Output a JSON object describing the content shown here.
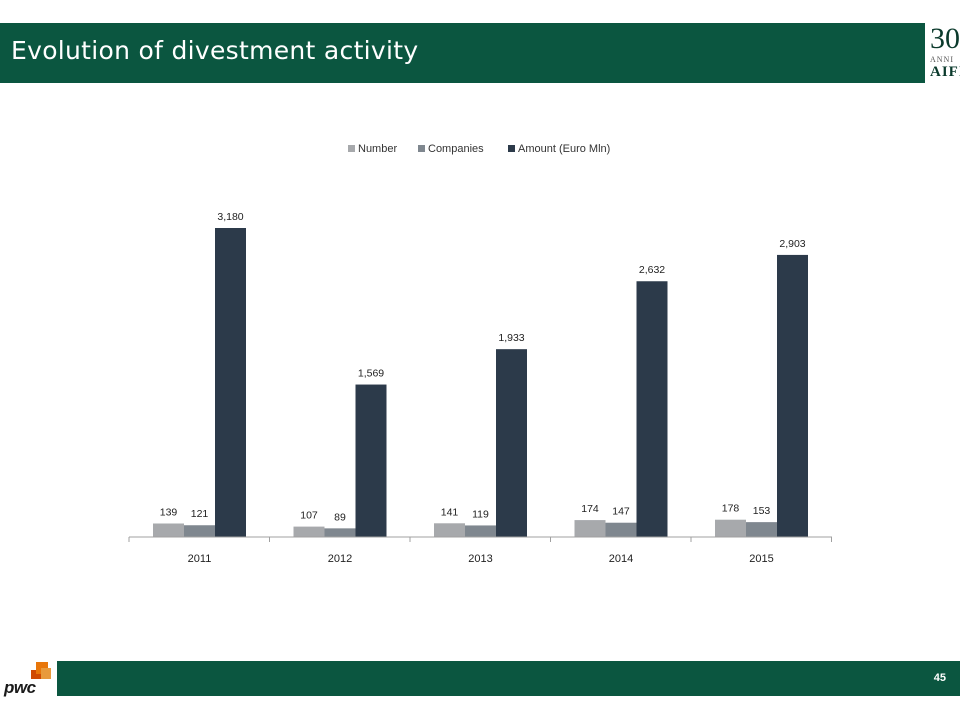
{
  "slide": {
    "title": "Evolution of divestment activity",
    "page_number": "45"
  },
  "logo": {
    "aifi_number": "30",
    "aifi_anni": "ANNI",
    "aifi_name": "AIFI",
    "pwc_name": "pwc"
  },
  "colors": {
    "header_green": "#0b5640",
    "series_number": "#a7a9ac",
    "series_companies": "#7f878f",
    "series_amount": "#2c3a4a",
    "pwc_orange": "#e8760a",
    "pwc_red": "#d04a02"
  },
  "chart_data": {
    "type": "bar",
    "categories": [
      "2011",
      "2012",
      "2013",
      "2014",
      "2015"
    ],
    "series": [
      {
        "name": "Number",
        "values": [
          139,
          107,
          141,
          174,
          178
        ],
        "labels": [
          "139",
          "107",
          "141",
          "174",
          "178"
        ]
      },
      {
        "name": "Companies",
        "values": [
          121,
          89,
          119,
          147,
          153
        ],
        "labels": [
          "121",
          "89",
          "119",
          "147",
          "153"
        ]
      },
      {
        "name": "Amount (Euro Mln)",
        "values": [
          3180,
          1569,
          1933,
          2632,
          2903
        ],
        "labels": [
          "3,180",
          "1,569",
          "1,933",
          "2,632",
          "2,903"
        ]
      }
    ],
    "legend_position": "top-center",
    "grid": false
  }
}
